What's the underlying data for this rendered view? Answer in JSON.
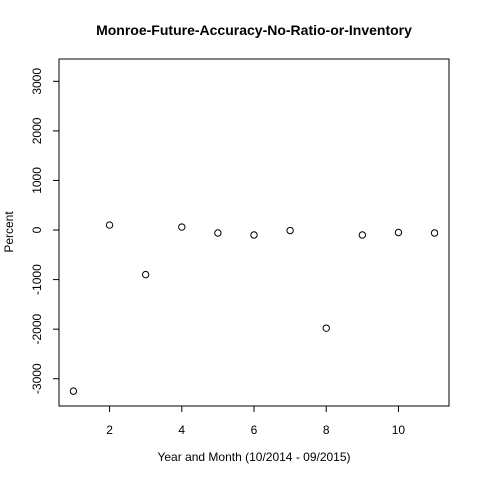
{
  "chart_data": {
    "type": "scatter",
    "title": "Monroe-Future-Accuracy-No-Ratio-or-Inventory",
    "xlabel": "Year and Month (10/2014 - 09/2015)",
    "ylabel": "Percent",
    "xlim": [
      0.6,
      11.4
    ],
    "ylim": [
      -3550,
      3450
    ],
    "x_ticks": [
      2,
      4,
      6,
      8,
      10
    ],
    "y_ticks": [
      -3000,
      -2000,
      -1000,
      0,
      1000,
      2000,
      3000
    ],
    "grid": false,
    "marker": "open-circle",
    "points": [
      {
        "x": 1,
        "y": -3250
      },
      {
        "x": 2,
        "y": 100
      },
      {
        "x": 3,
        "y": -900
      },
      {
        "x": 4,
        "y": 60
      },
      {
        "x": 5,
        "y": -60
      },
      {
        "x": 6,
        "y": -100
      },
      {
        "x": 7,
        "y": -10
      },
      {
        "x": 8,
        "y": -1980
      },
      {
        "x": 9,
        "y": -100
      },
      {
        "x": 10,
        "y": -50
      },
      {
        "x": 11,
        "y": -60
      }
    ]
  }
}
